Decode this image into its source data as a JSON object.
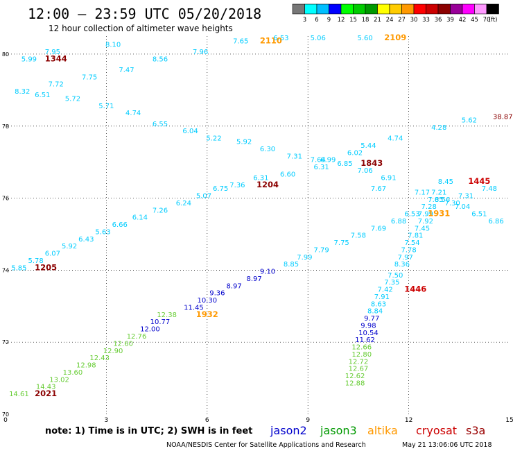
{
  "header": {
    "title": "12:00 – 23:59 UTC 05/20/2018",
    "subtitle": "12 hour collection of altimeter wave heights",
    "footer": "NOAA/NESDIS Center for Satellite Applications and Research",
    "generated": "May 21 13:06:06 UTC 2018"
  },
  "colorbar": {
    "unit": "(ft)",
    "ticks": [
      "3",
      "6",
      "9",
      "12",
      "15",
      "18",
      "21",
      "24",
      "27",
      "30",
      "33",
      "36",
      "39",
      "42",
      "45",
      "70"
    ],
    "colors": [
      "#777777",
      "#00ffff",
      "#00bfff",
      "#0000ff",
      "#00ff00",
      "#00cc00",
      "#009900",
      "#ffff00",
      "#ffcc00",
      "#ff9900",
      "#ff0000",
      "#cc0000",
      "#8b0000",
      "#990099",
      "#ff00ff",
      "#ff99ff",
      "#000000"
    ]
  },
  "note": "note:  1) Time is in UTC; 2) SWH is in feet",
  "satellites": [
    {
      "name": "jason2",
      "color": "#0000cc"
    },
    {
      "name": "jason3",
      "color": "#009900"
    },
    {
      "name": "altika",
      "color": "#ff9900"
    },
    {
      "name": "cryosat",
      "color": "#cc0000"
    },
    {
      "name": "s3a",
      "color": "#990000"
    }
  ],
  "chart_data": {
    "type": "scatter",
    "title": "12:00 – 23:59 UTC 05/20/2018",
    "subtitle": "12 hour collection of altimeter wave heights",
    "x_ticks": [
      "0",
      "3",
      "6",
      "9",
      "12",
      "15"
    ],
    "y_ticks": [
      "80",
      "78",
      "76",
      "74",
      "72",
      "70"
    ],
    "xlim": [
      0,
      15
    ],
    "ylim": [
      70,
      80.5
    ],
    "grid": "dotted",
    "unit": "ft",
    "labels": [
      {
        "x": 0.7,
        "y": 79.8,
        "text": "5.99",
        "color": "#00ccff"
      },
      {
        "x": 1.5,
        "y": 79.8,
        "text": "1344",
        "color": "#8b0000",
        "bold": true
      },
      {
        "x": 1.4,
        "y": 80.0,
        "text": "7.95",
        "color": "#00ccff"
      },
      {
        "x": 3.2,
        "y": 80.2,
        "text": "8.10",
        "color": "#00ccff"
      },
      {
        "x": 0.5,
        "y": 78.9,
        "text": "8.32",
        "color": "#00ccff"
      },
      {
        "x": 1.1,
        "y": 78.8,
        "text": "6.51",
        "color": "#00ccff"
      },
      {
        "x": 1.5,
        "y": 79.1,
        "text": "7.72",
        "color": "#00ccff"
      },
      {
        "x": 2.5,
        "y": 79.3,
        "text": "7.75",
        "color": "#00ccff"
      },
      {
        "x": 2.0,
        "y": 78.7,
        "text": "5.72",
        "color": "#00ccff"
      },
      {
        "x": 3.0,
        "y": 78.5,
        "text": "5.71",
        "color": "#00ccff"
      },
      {
        "x": 3.6,
        "y": 79.5,
        "text": "7.47",
        "color": "#00ccff"
      },
      {
        "x": 3.8,
        "y": 78.3,
        "text": "4.74",
        "color": "#00ccff"
      },
      {
        "x": 4.6,
        "y": 79.8,
        "text": "8.56",
        "color": "#00ccff"
      },
      {
        "x": 4.6,
        "y": 78.0,
        "text": "6.55",
        "color": "#00ccff"
      },
      {
        "x": 5.8,
        "y": 80.0,
        "text": "7.96",
        "color": "#00ccff"
      },
      {
        "x": 5.5,
        "y": 77.8,
        "text": "6.04",
        "color": "#00ccff"
      },
      {
        "x": 6.2,
        "y": 77.6,
        "text": "5.22",
        "color": "#00ccff"
      },
      {
        "x": 7.0,
        "y": 80.3,
        "text": "7.65",
        "color": "#00ccff"
      },
      {
        "x": 7.9,
        "y": 80.3,
        "text": "2110",
        "color": "#ff9900",
        "bold": true
      },
      {
        "x": 8.2,
        "y": 80.5,
        "text": "6.53",
        "color": "#00ccff"
      },
      {
        "x": 7.1,
        "y": 77.5,
        "text": "5.92",
        "color": "#00ccff"
      },
      {
        "x": 7.8,
        "y": 77.3,
        "text": "6.30",
        "color": "#00ccff"
      },
      {
        "x": 8.6,
        "y": 77.1,
        "text": "7.31",
        "color": "#00ccff"
      },
      {
        "x": 9.3,
        "y": 80.6,
        "text": "5.06",
        "color": "#00ccff"
      },
      {
        "x": 10.7,
        "y": 80.8,
        "text": "5.60",
        "color": "#00ccff"
      },
      {
        "x": 11.6,
        "y": 80.8,
        "text": "2109",
        "color": "#ff9900",
        "bold": true
      },
      {
        "x": 9.3,
        "y": 77.0,
        "text": "7.64",
        "color": "#00ccff"
      },
      {
        "x": 9.6,
        "y": 77.0,
        "text": "6.99",
        "color": "#00ccff"
      },
      {
        "x": 9.4,
        "y": 76.8,
        "text": "6.31",
        "color": "#00ccff"
      },
      {
        "x": 10.1,
        "y": 76.9,
        "text": "6.85",
        "color": "#00ccff"
      },
      {
        "x": 10.4,
        "y": 77.2,
        "text": "6.02",
        "color": "#00ccff"
      },
      {
        "x": 10.9,
        "y": 76.9,
        "text": "1843",
        "color": "#8b0000",
        "bold": true
      },
      {
        "x": 10.8,
        "y": 77.4,
        "text": "5.44",
        "color": "#00ccff"
      },
      {
        "x": 10.7,
        "y": 76.7,
        "text": "7.06",
        "color": "#00ccff"
      },
      {
        "x": 11.6,
        "y": 77.6,
        "text": "4.74",
        "color": "#00ccff"
      },
      {
        "x": 11.4,
        "y": 76.5,
        "text": "6.91",
        "color": "#00ccff"
      },
      {
        "x": 12.9,
        "y": 77.9,
        "text": "4.28",
        "color": "#00ccff"
      },
      {
        "x": 13.8,
        "y": 78.1,
        "text": "5.62",
        "color": "#00ccff"
      },
      {
        "x": 14.8,
        "y": 78.2,
        "text": "38.87",
        "color": "#8b0000"
      },
      {
        "x": 8.4,
        "y": 76.6,
        "text": "6.60",
        "color": "#00ccff"
      },
      {
        "x": 7.6,
        "y": 76.5,
        "text": "6.31",
        "color": "#00ccff"
      },
      {
        "x": 7.8,
        "y": 76.3,
        "text": "1204",
        "color": "#8b0000",
        "bold": true
      },
      {
        "x": 6.9,
        "y": 76.3,
        "text": "7.36",
        "color": "#00ccff"
      },
      {
        "x": 6.4,
        "y": 76.2,
        "text": "6.75",
        "color": "#00ccff"
      },
      {
        "x": 5.9,
        "y": 76.0,
        "text": "5.07",
        "color": "#00ccff"
      },
      {
        "x": 5.3,
        "y": 75.8,
        "text": "6.24",
        "color": "#00ccff"
      },
      {
        "x": 4.6,
        "y": 75.6,
        "text": "7.26",
        "color": "#00ccff"
      },
      {
        "x": 4.0,
        "y": 75.4,
        "text": "6.14",
        "color": "#00ccff"
      },
      {
        "x": 3.4,
        "y": 75.2,
        "text": "6.66",
        "color": "#00ccff"
      },
      {
        "x": 2.9,
        "y": 75.0,
        "text": "5.63",
        "color": "#00ccff"
      },
      {
        "x": 2.4,
        "y": 74.8,
        "text": "6.43",
        "color": "#00ccff"
      },
      {
        "x": 1.9,
        "y": 74.6,
        "text": "5.92",
        "color": "#00ccff"
      },
      {
        "x": 1.4,
        "y": 74.4,
        "text": "6.07",
        "color": "#00ccff"
      },
      {
        "x": 0.9,
        "y": 74.2,
        "text": "5.78",
        "color": "#00ccff"
      },
      {
        "x": 0.4,
        "y": 74.0,
        "text": "5.85",
        "color": "#00ccff"
      },
      {
        "x": 1.2,
        "y": 74.0,
        "text": "1205",
        "color": "#8b0000",
        "bold": true
      },
      {
        "x": 11.1,
        "y": 76.2,
        "text": "7.67",
        "color": "#00ccff"
      },
      {
        "x": 12.4,
        "y": 76.1,
        "text": "7.17",
        "color": "#00ccff"
      },
      {
        "x": 13.1,
        "y": 76.4,
        "text": "8.45",
        "color": "#00ccff"
      },
      {
        "x": 12.9,
        "y": 76.1,
        "text": "7.21",
        "color": "#00ccff"
      },
      {
        "x": 14.1,
        "y": 76.4,
        "text": "1445",
        "color": "#cc0000",
        "bold": true
      },
      {
        "x": 14.4,
        "y": 76.2,
        "text": "7.48",
        "color": "#00ccff"
      },
      {
        "x": 13.7,
        "y": 76.0,
        "text": "7.31",
        "color": "#00ccff"
      },
      {
        "x": 12.8,
        "y": 75.9,
        "text": "7.85",
        "color": "#00ccff"
      },
      {
        "x": 13.0,
        "y": 75.9,
        "text": "6.56",
        "color": "#00ccff"
      },
      {
        "x": 13.3,
        "y": 75.8,
        "text": "7.30",
        "color": "#00ccff"
      },
      {
        "x": 12.6,
        "y": 75.7,
        "text": "7.28",
        "color": "#00ccff"
      },
      {
        "x": 13.6,
        "y": 75.7,
        "text": "7.04",
        "color": "#00ccff"
      },
      {
        "x": 12.1,
        "y": 75.5,
        "text": "6.53",
        "color": "#00ccff"
      },
      {
        "x": 12.5,
        "y": 75.5,
        "text": "7.99",
        "color": "#00ccff"
      },
      {
        "x": 12.9,
        "y": 75.5,
        "text": "1931",
        "color": "#ff9900",
        "bold": true
      },
      {
        "x": 14.1,
        "y": 75.5,
        "text": "6.51",
        "color": "#00ccff"
      },
      {
        "x": 14.6,
        "y": 75.3,
        "text": "6.86",
        "color": "#00ccff"
      },
      {
        "x": 11.7,
        "y": 75.3,
        "text": "6.88",
        "color": "#00ccff"
      },
      {
        "x": 12.5,
        "y": 75.3,
        "text": "7.92",
        "color": "#00ccff"
      },
      {
        "x": 12.4,
        "y": 75.1,
        "text": "7.45",
        "color": "#00ccff"
      },
      {
        "x": 11.1,
        "y": 75.1,
        "text": "7.69",
        "color": "#00ccff"
      },
      {
        "x": 12.2,
        "y": 74.9,
        "text": "7.81",
        "color": "#00ccff"
      },
      {
        "x": 10.5,
        "y": 74.9,
        "text": "7.58",
        "color": "#00ccff"
      },
      {
        "x": 12.1,
        "y": 74.7,
        "text": "7.54",
        "color": "#00ccff"
      },
      {
        "x": 10.0,
        "y": 74.7,
        "text": "7.75",
        "color": "#00ccff"
      },
      {
        "x": 12.0,
        "y": 74.5,
        "text": "7.78",
        "color": "#00ccff"
      },
      {
        "x": 9.4,
        "y": 74.5,
        "text": "7.79",
        "color": "#00ccff"
      },
      {
        "x": 11.9,
        "y": 74.3,
        "text": "7.97",
        "color": "#00ccff"
      },
      {
        "x": 8.9,
        "y": 74.3,
        "text": "7.99",
        "color": "#00ccff"
      },
      {
        "x": 8.5,
        "y": 74.1,
        "text": "8.85",
        "color": "#00ccff"
      },
      {
        "x": 11.8,
        "y": 74.1,
        "text": "8.36",
        "color": "#00ccff"
      },
      {
        "x": 7.8,
        "y": 73.9,
        "text": "9.10",
        "color": "#0000cc"
      },
      {
        "x": 11.6,
        "y": 73.8,
        "text": "7.50",
        "color": "#00ccff"
      },
      {
        "x": 7.4,
        "y": 73.7,
        "text": "8.97",
        "color": "#0000cc"
      },
      {
        "x": 11.5,
        "y": 73.6,
        "text": "7.35",
        "color": "#00ccff"
      },
      {
        "x": 6.8,
        "y": 73.5,
        "text": "8.97",
        "color": "#0000cc"
      },
      {
        "x": 11.3,
        "y": 73.4,
        "text": "7.42",
        "color": "#00ccff"
      },
      {
        "x": 12.2,
        "y": 73.4,
        "text": "1446",
        "color": "#cc0000",
        "bold": true
      },
      {
        "x": 6.3,
        "y": 73.3,
        "text": "9.36",
        "color": "#0000cc"
      },
      {
        "x": 11.2,
        "y": 73.2,
        "text": "7.91",
        "color": "#00ccff"
      },
      {
        "x": 6.0,
        "y": 73.1,
        "text": "10.30",
        "color": "#0000cc"
      },
      {
        "x": 11.1,
        "y": 73.0,
        "text": "8.63",
        "color": "#00ccff"
      },
      {
        "x": 5.6,
        "y": 72.9,
        "text": "11.45",
        "color": "#0000cc"
      },
      {
        "x": 11.0,
        "y": 72.8,
        "text": "8.84",
        "color": "#00ccff"
      },
      {
        "x": 6.0,
        "y": 72.7,
        "text": "1932",
        "color": "#ff9900",
        "bold": true
      },
      {
        "x": 4.8,
        "y": 72.7,
        "text": "12.38",
        "color": "#66cc33"
      },
      {
        "x": 10.9,
        "y": 72.6,
        "text": "9.77",
        "color": "#0000cc"
      },
      {
        "x": 4.6,
        "y": 72.5,
        "text": "10.77",
        "color": "#0000cc"
      },
      {
        "x": 10.8,
        "y": 72.4,
        "text": "9.98",
        "color": "#0000cc"
      },
      {
        "x": 4.3,
        "y": 72.3,
        "text": "12.00",
        "color": "#0000cc"
      },
      {
        "x": 10.8,
        "y": 72.2,
        "text": "10.54",
        "color": "#0000cc"
      },
      {
        "x": 3.9,
        "y": 72.1,
        "text": "12.76",
        "color": "#66cc33"
      },
      {
        "x": 10.7,
        "y": 72.0,
        "text": "11.62",
        "color": "#0000cc"
      },
      {
        "x": 3.5,
        "y": 71.9,
        "text": "12.60",
        "color": "#66cc33"
      },
      {
        "x": 10.6,
        "y": 71.8,
        "text": "12.66",
        "color": "#66cc33"
      },
      {
        "x": 3.2,
        "y": 71.7,
        "text": "12.90",
        "color": "#66cc33"
      },
      {
        "x": 10.6,
        "y": 71.6,
        "text": "12.80",
        "color": "#66cc33"
      },
      {
        "x": 2.8,
        "y": 71.5,
        "text": "12.43",
        "color": "#66cc33"
      },
      {
        "x": 10.5,
        "y": 71.4,
        "text": "12.72",
        "color": "#66cc33"
      },
      {
        "x": 2.4,
        "y": 71.3,
        "text": "12.98",
        "color": "#66cc33"
      },
      {
        "x": 10.5,
        "y": 71.2,
        "text": "12.67",
        "color": "#66cc33"
      },
      {
        "x": 2.0,
        "y": 71.1,
        "text": "13.60",
        "color": "#66cc33"
      },
      {
        "x": 10.4,
        "y": 71.0,
        "text": "12.62",
        "color": "#66cc33"
      },
      {
        "x": 1.6,
        "y": 70.9,
        "text": "13.02",
        "color": "#66cc33"
      },
      {
        "x": 10.4,
        "y": 70.8,
        "text": "12.88",
        "color": "#66cc33"
      },
      {
        "x": 1.2,
        "y": 70.7,
        "text": "14.43",
        "color": "#66cc33"
      },
      {
        "x": 0.4,
        "y": 70.5,
        "text": "14.61",
        "color": "#66cc33"
      },
      {
        "x": 1.2,
        "y": 70.5,
        "text": "2021",
        "color": "#8b0000",
        "bold": true
      }
    ]
  }
}
